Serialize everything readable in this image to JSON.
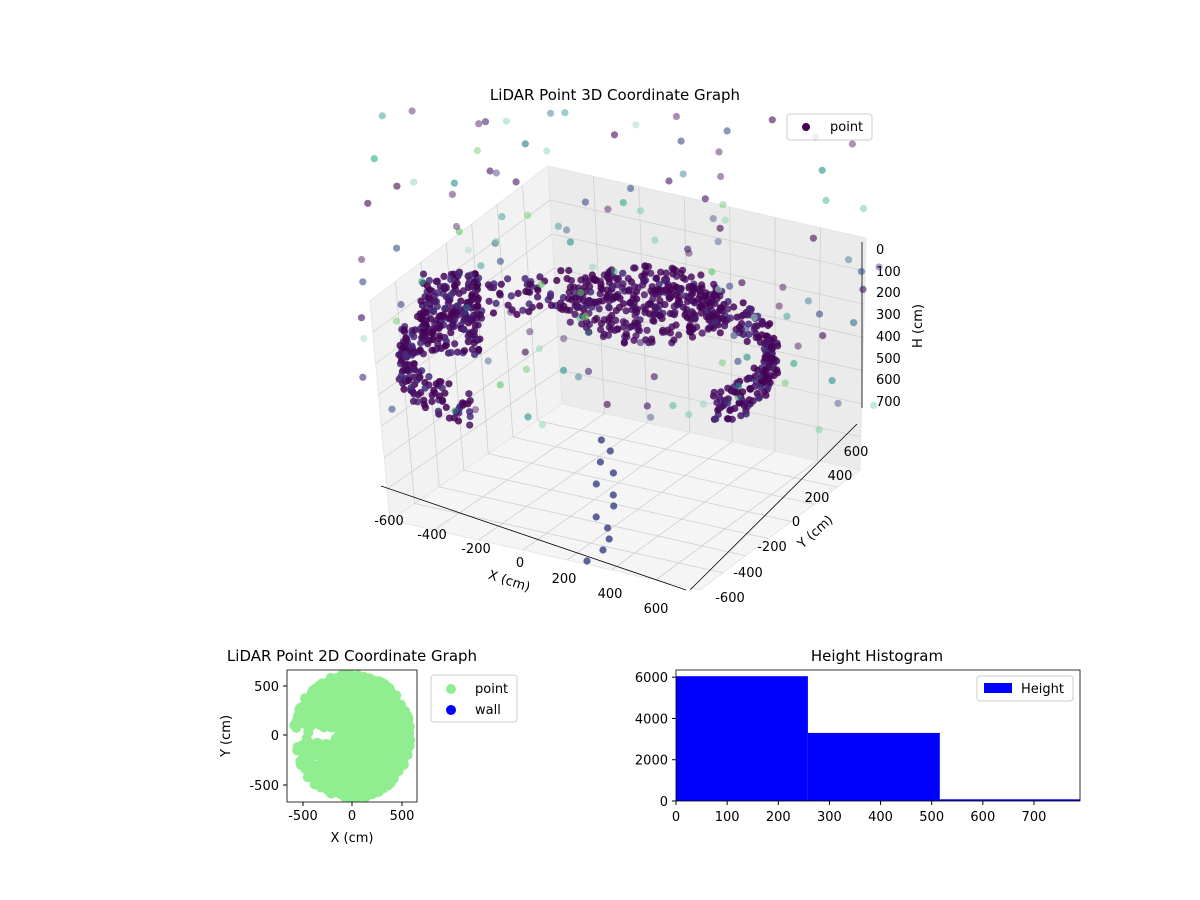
{
  "chart_data": [
    {
      "type": "scatter",
      "dimension": "3d",
      "title": "LiDAR Point 3D Coordinate Graph",
      "xlabel": "X (cm)",
      "ylabel": "Y (cm)",
      "zlabel": "H (cm)",
      "xlim": [
        -650,
        650
      ],
      "ylim": [
        -650,
        650
      ],
      "zlim": [
        0,
        780
      ],
      "z_inverted": true,
      "x_ticks": [
        "-600",
        "-400",
        "-200",
        "0",
        "200",
        "400",
        "600"
      ],
      "y_ticks": [
        "-600",
        "-400",
        "-200",
        "0",
        "200",
        "400",
        "600"
      ],
      "z_ticks": [
        "0",
        "100",
        "200",
        "300",
        "400",
        "500",
        "600",
        "700"
      ],
      "colormap": "viridis (by height)",
      "series": [
        {
          "name": "point",
          "color": "#440154"
        }
      ],
      "legend_position": "top-right",
      "grid": true
    },
    {
      "type": "scatter",
      "title": "LiDAR Point 2D Coordinate Graph",
      "xlabel": "X (cm)",
      "ylabel": "Y (cm)",
      "xlim": [
        -650,
        650
      ],
      "ylim": [
        -650,
        650
      ],
      "x_ticks": [
        "-500",
        "0",
        "500"
      ],
      "y_ticks": [
        "500",
        "0",
        "-500"
      ],
      "series": [
        {
          "name": "point",
          "color": "#90ee90"
        },
        {
          "name": "wall",
          "color": "#0000ff"
        }
      ],
      "legend_position": "outside-right",
      "grid": false
    },
    {
      "type": "bar",
      "title": "Height Histogram",
      "xlabel": "",
      "ylabel": "",
      "bins": [
        [
          0,
          258
        ],
        [
          258,
          516
        ],
        [
          516,
          790
        ]
      ],
      "values": [
        6050,
        3300,
        80
      ],
      "xlim": [
        0,
        790
      ],
      "ylim": [
        0,
        6350
      ],
      "x_ticks": [
        "0",
        "100",
        "200",
        "300",
        "400",
        "500",
        "600",
        "700"
      ],
      "y_ticks": [
        "0",
        "2000",
        "4000",
        "6000"
      ],
      "series": [
        {
          "name": "Height",
          "color": "#0000ff"
        }
      ],
      "legend_position": "top-right",
      "grid": false
    }
  ]
}
